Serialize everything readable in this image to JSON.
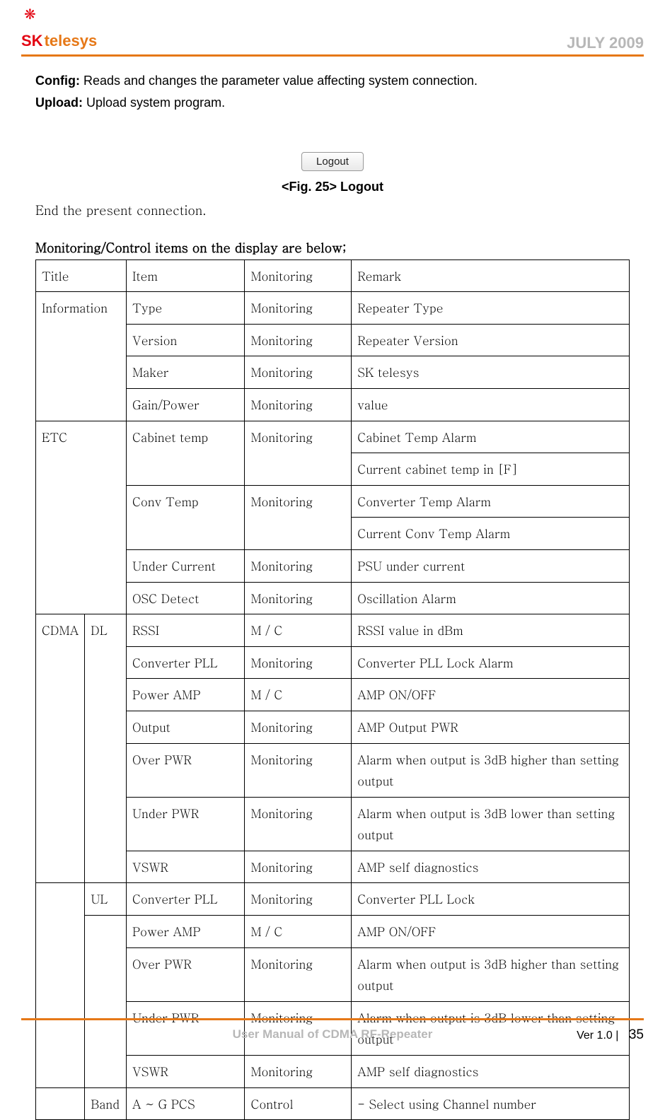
{
  "header": {
    "logo_sk": "SK",
    "logo_telesys": "telesys",
    "date": "JULY 2009"
  },
  "intro": {
    "config_label": "Config:",
    "config_text": " Reads and changes the parameter value affecting system connection.",
    "upload_label": "Upload:",
    "upload_text": " Upload system program."
  },
  "logout": {
    "button": "Logout",
    "caption": "<Fig. 25> Logout",
    "desc": "End the present connection."
  },
  "section_title": "Monitoring/Control items on the display are below;",
  "table": {
    "header": {
      "c0": "Title",
      "c1": "Item",
      "c2": "Monitoring",
      "c3": "Remark"
    },
    "information": {
      "title": "Information",
      "rows": [
        {
          "item": "Type",
          "mon": "Monitoring",
          "rem": "Repeater Type"
        },
        {
          "item": "Version",
          "mon": "Monitoring",
          "rem": "Repeater Version"
        },
        {
          "item": "Maker",
          "mon": "Monitoring",
          "rem": "SK telesys"
        },
        {
          "item": "Gain/Power",
          "mon": "Monitoring",
          "rem": "value"
        }
      ]
    },
    "etc": {
      "title": "ETC",
      "cabinet": {
        "item": "Cabinet temp",
        "mon": "Monitoring",
        "rem1": "Cabinet Temp Alarm",
        "rem2": "Current cabinet temp in [F]"
      },
      "conv": {
        "item": "Conv Temp",
        "mon": "Monitoring",
        "rem1": "Converter Temp Alarm",
        "rem2": "Current Conv Temp Alarm"
      },
      "under": {
        "item": "Under Current",
        "mon": "Monitoring",
        "rem": "PSU under current"
      },
      "osc": {
        "item": "OSC Detect",
        "mon": "Monitoring",
        "rem": "Oscillation Alarm"
      }
    },
    "cdma": {
      "title": "CDMA",
      "dl": {
        "title": "DL",
        "rows": [
          {
            "item": "RSSI",
            "mon": "M / C",
            "rem": "RSSI value in dBm"
          },
          {
            "item": "Converter PLL",
            "mon": "Monitoring",
            "rem": "Converter PLL Lock Alarm"
          },
          {
            "item": "Power AMP",
            "mon": "M / C",
            "rem": "AMP ON/OFF"
          },
          {
            "item": "Output",
            "mon": "Monitoring",
            "rem": "AMP Output PWR"
          },
          {
            "item": "Over PWR",
            "mon": "Monitoring",
            "rem": "Alarm when output is 3dB higher than setting output"
          },
          {
            "item": "Under PWR",
            "mon": "Monitoring",
            "rem": "Alarm when output is 3dB lower than setting output"
          },
          {
            "item": "VSWR",
            "mon": "Monitoring",
            "rem": "AMP self diagnostics"
          }
        ]
      },
      "ul": {
        "title": "UL",
        "row0": {
          "item": "Converter PLL",
          "mon": "Monitoring",
          "rem": "Converter PLL Lock"
        },
        "rows": [
          {
            "item": "Power AMP",
            "mon": "M / C",
            "rem": "AMP ON/OFF"
          },
          {
            "item": "Over PWR",
            "mon": "Monitoring",
            "rem": "Alarm when output is 3dB higher than setting output"
          },
          {
            "item": "Under PWR",
            "mon": "Monitoring",
            "rem": "Alarm when output is 3dB lower than setting output"
          },
          {
            "item": "VSWR",
            "mon": "Monitoring",
            "rem": "AMP self diagnostics"
          }
        ]
      },
      "band": {
        "title": "Band",
        "item": "A ~ G PCS",
        "mon": "Control",
        "rem": "- Select using Channel number"
      }
    }
  },
  "footer": {
    "title": "User Manual of CDMA RF-Repeater",
    "ver": "Ver 1.0 |",
    "page": "35"
  }
}
